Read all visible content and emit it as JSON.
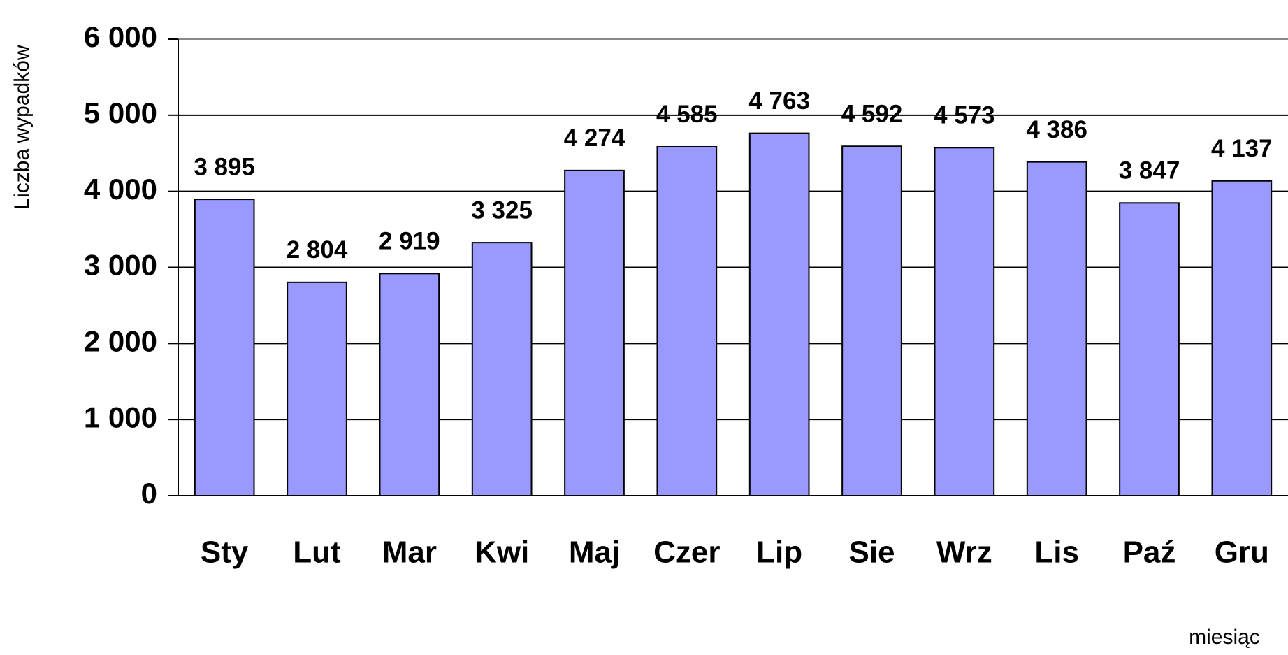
{
  "chart_data": {
    "type": "bar",
    "y_label": "Liczba wypadków",
    "x_label": "miesiąc",
    "categories": [
      "Sty",
      "Lut",
      "Mar",
      "Kwi",
      "Maj",
      "Czer",
      "Lip",
      "Sie",
      "Wrz",
      "Lis",
      "Paź",
      "Gru"
    ],
    "values": [
      3895,
      2804,
      2919,
      3325,
      4274,
      4585,
      4763,
      4592,
      4573,
      4386,
      3847,
      4137
    ],
    "value_labels": [
      "3 895",
      "2 804",
      "2 919",
      "3 325",
      "4 274",
      "4 585",
      "4 763",
      "4 592",
      "4 573",
      "4 386",
      "3 847",
      "4 137"
    ],
    "color": "#9999ff",
    "ylim": [
      0,
      6000
    ],
    "yticks": [
      {
        "value": 0,
        "label": "0"
      },
      {
        "value": 1000,
        "label": "1 000"
      },
      {
        "value": 2000,
        "label": "2 000"
      },
      {
        "value": 3000,
        "label": "3 000"
      },
      {
        "value": 4000,
        "label": "4 000"
      },
      {
        "value": 5000,
        "label": "5 000"
      },
      {
        "value": 6000,
        "label": "6 000"
      }
    ],
    "grid": true
  }
}
